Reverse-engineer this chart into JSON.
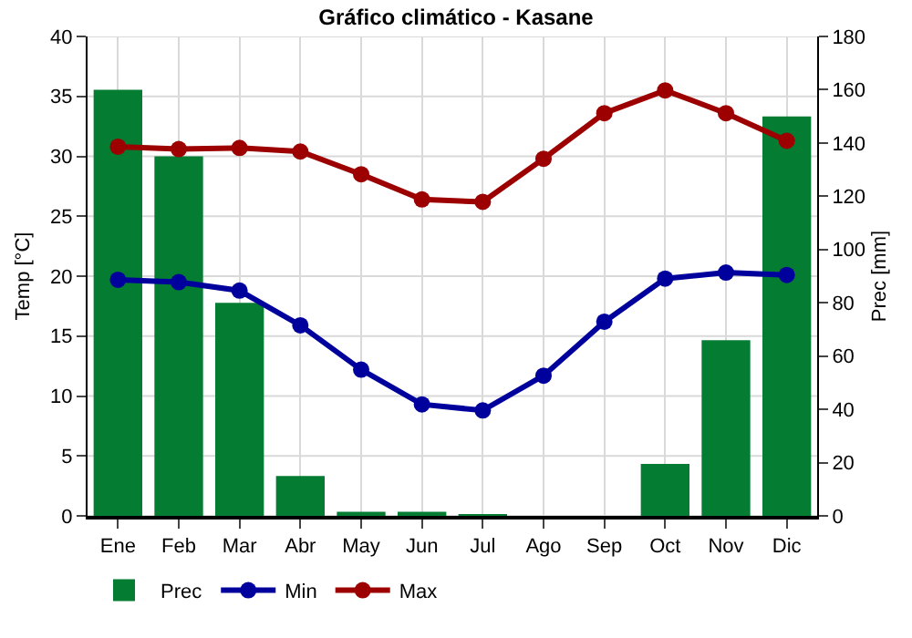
{
  "chart_data": {
    "type": "line",
    "title": "Gráfico climático - Kasane",
    "ylabel": "Temp [°C]",
    "y2label": "Prec [mm]",
    "categories": [
      "Ene",
      "Feb",
      "Mar",
      "Abr",
      "May",
      "Jun",
      "Jul",
      "Ago",
      "Sep",
      "Oct",
      "Nov",
      "Dic"
    ],
    "series": [
      {
        "name": "Prec",
        "type": "bar",
        "axis": "y2",
        "color": "#047c32",
        "values": [
          160,
          135,
          80,
          15,
          1.5,
          1.5,
          0.5,
          0,
          0,
          19.5,
          66,
          150
        ]
      },
      {
        "name": "Min",
        "color": "#00009c",
        "values": [
          19.7,
          19.5,
          18.8,
          15.9,
          12.2,
          9.3,
          8.8,
          11.7,
          16.2,
          19.8,
          20.3,
          20.1
        ]
      },
      {
        "name": "Max",
        "color": "#9c0000",
        "values": [
          30.8,
          30.6,
          30.7,
          30.4,
          28.5,
          26.4,
          26.2,
          29.8,
          33.6,
          35.5,
          33.6,
          31.3
        ]
      }
    ],
    "ylim": [
      0,
      40
    ],
    "yticks": [
      0,
      5,
      10,
      15,
      20,
      25,
      30,
      35,
      40
    ],
    "y2lim": [
      0,
      180
    ],
    "y2ticks": [
      0,
      20,
      40,
      60,
      80,
      100,
      120,
      140,
      160,
      180
    ],
    "grid": true,
    "legend": "bottom left",
    "marker": "circle",
    "line_style": "solid"
  }
}
